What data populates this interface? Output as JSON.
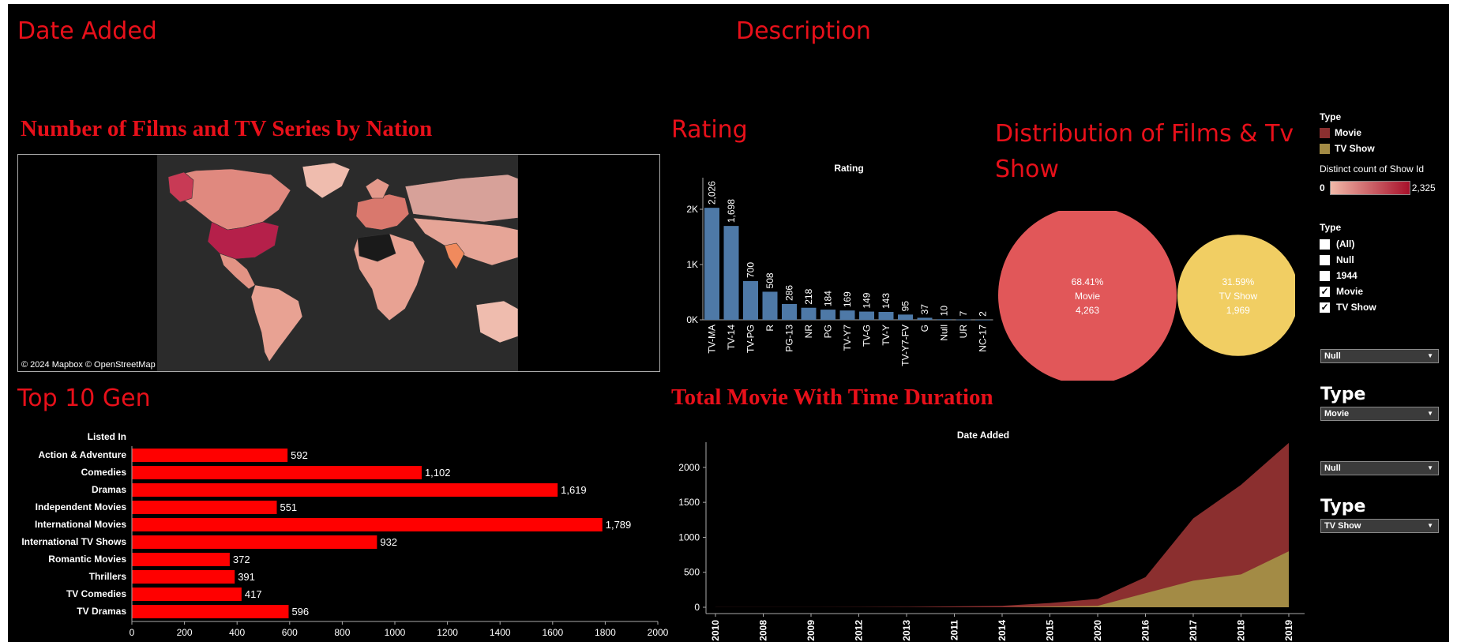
{
  "headers": {
    "date_added": "Date Added",
    "description": "Description",
    "nation": "Number of Films and TV Series by Nation",
    "rating": "Rating",
    "distribution": "Distribution of Films & Tv Show",
    "top_gen": "Top 10 Gen",
    "duration": "Total Movie With Time Duration"
  },
  "map": {
    "attribution": "© 2024 Mapbox © OpenStreetMap"
  },
  "legend": {
    "type_title": "Type",
    "types": [
      {
        "label": "Movie",
        "color": "#8b2f2f"
      },
      {
        "label": "TV Show",
        "color": "#a38b45"
      }
    ],
    "distinct_title": "Distinct count of Show Id",
    "min": "0",
    "max": "2,325",
    "gradient_from": "#f1b8a8",
    "gradient_to": "#a8102a"
  },
  "filter": {
    "title": "Type",
    "options": [
      {
        "label": "(All)",
        "checked": false
      },
      {
        "label": "Null",
        "checked": false
      },
      {
        "label": "1944",
        "checked": false
      },
      {
        "label": "Movie",
        "checked": true
      },
      {
        "label": "TV Show",
        "checked": true
      }
    ]
  },
  "dropdowns": {
    "dd1": "Null",
    "type_label_1": "Type",
    "dd2": "Movie",
    "dd3": "Null",
    "type_label_2": "Type",
    "dd4": "TV Show"
  },
  "chart_data": [
    {
      "id": "rating",
      "type": "bar",
      "title": "Rating",
      "categories": [
        "TV-MA",
        "TV-14",
        "TV-PG",
        "R",
        "PG-13",
        "NR",
        "PG",
        "TV-Y7",
        "TV-G",
        "TV-Y",
        "TV-Y7-FV",
        "G",
        "Null",
        "UR",
        "NC-17"
      ],
      "values": [
        2026,
        1698,
        700,
        508,
        286,
        218,
        184,
        169,
        149,
        143,
        95,
        37,
        10,
        7,
        2
      ],
      "labels": [
        "2,026",
        "1,698",
        "700",
        "508",
        "286",
        "218",
        "184",
        "169",
        "149",
        "143",
        "95",
        "37",
        "10",
        "7",
        "2"
      ],
      "yticks": [
        "0K",
        "1K",
        "2K"
      ],
      "ylim": [
        0,
        2500
      ],
      "color": "#4e79a7"
    },
    {
      "id": "distribution",
      "type": "pie",
      "categories": [
        "Movie",
        "TV Show"
      ],
      "values": [
        4263,
        1969
      ],
      "percents": [
        "68.41%",
        "31.59%"
      ],
      "value_labels": [
        "4,263",
        "1,969"
      ],
      "colors": [
        "#e15759",
        "#f1ce63"
      ]
    },
    {
      "id": "top_genres",
      "type": "bar",
      "title": "Listed In",
      "categories": [
        "Action & Adventure",
        "Comedies",
        "Dramas",
        "Independent Movies",
        "International Movies",
        "International TV Shows",
        "Romantic Movies",
        "Thrillers",
        "TV Comedies",
        "TV Dramas"
      ],
      "values": [
        592,
        1102,
        1619,
        551,
        1789,
        932,
        372,
        391,
        417,
        596
      ],
      "labels": [
        "592",
        "1,102",
        "1,619",
        "551",
        "1,789",
        "932",
        "372",
        "391",
        "417",
        "596"
      ],
      "xticks": [
        0,
        200,
        400,
        600,
        800,
        1000,
        1200,
        1400,
        1600,
        1800,
        2000
      ],
      "xlim": [
        0,
        2000
      ],
      "color": "#ff0000"
    },
    {
      "id": "duration",
      "type": "area",
      "title": "Date Added",
      "x": [
        "2010",
        "2008",
        "2009",
        "2012",
        "2013",
        "2011",
        "2014",
        "2015",
        "2020",
        "2016",
        "2017",
        "2018",
        "2019"
      ],
      "series": [
        {
          "name": "Movie",
          "values": [
            1,
            1,
            2,
            3,
            6,
            12,
            20,
            60,
            120,
            430,
            1270,
            1750,
            2350
          ],
          "color": "#8b2f2f"
        },
        {
          "name": "TV Show",
          "values": [
            0,
            0,
            0,
            0,
            0,
            0,
            0,
            10,
            20,
            200,
            380,
            470,
            800
          ],
          "color": "#a38b45"
        }
      ],
      "yticks": [
        0,
        500,
        1000,
        1500,
        2000
      ],
      "ylim": [
        0,
        2450
      ]
    }
  ]
}
